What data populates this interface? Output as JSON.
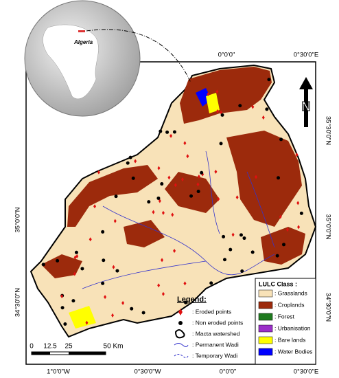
{
  "globe": {
    "label": "Algeria"
  },
  "coordinates": {
    "top": [
      "0°0'0\"",
      "0°30'0\"E"
    ],
    "bottom": [
      "1°0'0\"W",
      "0°30'0\"W",
      "0°0'0\"",
      "0°30'0\"E"
    ],
    "right": [
      "35°30'0\"N",
      "35°0'0\"N",
      "34°30'0\"N"
    ],
    "left": [
      "35°0'0\"N",
      "34°30'0\"N"
    ]
  },
  "north_arrow": "N",
  "scale_bar": [
    "0",
    "12.5",
    "25",
    "50 Km"
  ],
  "legend": {
    "title": "Legend:",
    "items": [
      ": Eroded points",
      ": Non eroded points",
      ": Macta watershed",
      ": Permanent Wadi",
      ": Temporary Wadi"
    ]
  },
  "lulc": {
    "title": "LULC Class :",
    "classes": [
      {
        "name": ": Grasslands",
        "color": "#f8e2b8"
      },
      {
        "name": ": Croplands",
        "color": "#9c2a0c"
      },
      {
        "name": ": Forest",
        "color": "#1f7a1f"
      },
      {
        "name": ": Urbanisation",
        "color": "#9b2fc9"
      },
      {
        "name": ": Bare lands",
        "color": "#ffff00"
      },
      {
        "name": ": Water Bodies",
        "color": "#0000ff"
      }
    ]
  }
}
